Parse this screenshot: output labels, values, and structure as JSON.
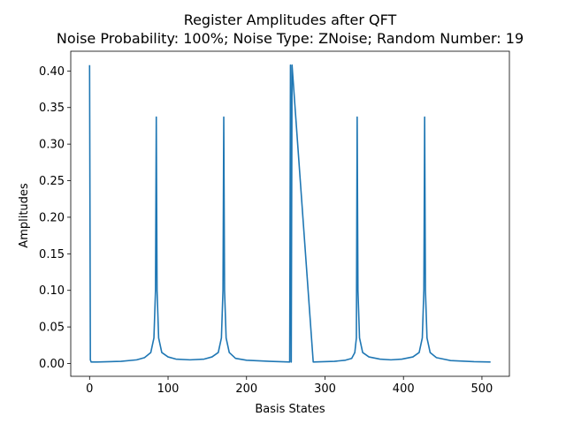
{
  "chart_data": {
    "type": "line",
    "title": "Register Amplitudes after QFT",
    "subtitle": "Noise Probability: 100%; Noise Type: ZNoise; Random Number: 19",
    "xlabel": "Basis States",
    "ylabel": "Amplitudes",
    "xlim": [
      -24,
      535
    ],
    "ylim": [
      -0.0175,
      0.427
    ],
    "xticks": [
      0,
      100,
      200,
      300,
      400,
      500
    ],
    "xtick_labels": [
      "0",
      "100",
      "200",
      "300",
      "400",
      "500"
    ],
    "yticks": [
      0.0,
      0.05,
      0.1,
      0.15,
      0.2,
      0.25,
      0.3,
      0.35,
      0.4
    ],
    "ytick_labels": [
      "0.00",
      "0.05",
      "0.10",
      "0.15",
      "0.20",
      "0.25",
      "0.30",
      "0.35",
      "0.40"
    ],
    "grid": false,
    "color": "#1f77b4",
    "series": [
      {
        "x": [
          0,
          1,
          2,
          10,
          20,
          40,
          60,
          70,
          78,
          82,
          84,
          85,
          86,
          88,
          92,
          100,
          110,
          128,
          146,
          156,
          164,
          168,
          170,
          171,
          172,
          174,
          178,
          186,
          200,
          230,
          255,
          256,
          257,
          258,
          285,
          312,
          326,
          334,
          338,
          340,
          341,
          342,
          344,
          348,
          356,
          370,
          384,
          398,
          412,
          420,
          424,
          426,
          427,
          428,
          430,
          434,
          442,
          460,
          490,
          511
        ],
        "y": [
          0.408,
          0.005,
          0.002,
          0.002,
          0.0023,
          0.003,
          0.005,
          0.008,
          0.015,
          0.035,
          0.1,
          0.337,
          0.1,
          0.035,
          0.015,
          0.009,
          0.006,
          0.005,
          0.006,
          0.009,
          0.015,
          0.035,
          0.1,
          0.337,
          0.1,
          0.035,
          0.015,
          0.007,
          0.0045,
          0.003,
          0.002,
          0.408,
          0.002,
          0.408,
          0.002,
          0.003,
          0.0045,
          0.007,
          0.015,
          0.035,
          0.337,
          0.1,
          0.035,
          0.015,
          0.009,
          0.006,
          0.005,
          0.006,
          0.009,
          0.015,
          0.035,
          0.1,
          0.337,
          0.1,
          0.035,
          0.015,
          0.008,
          0.004,
          0.0025,
          0.002
        ]
      }
    ]
  }
}
